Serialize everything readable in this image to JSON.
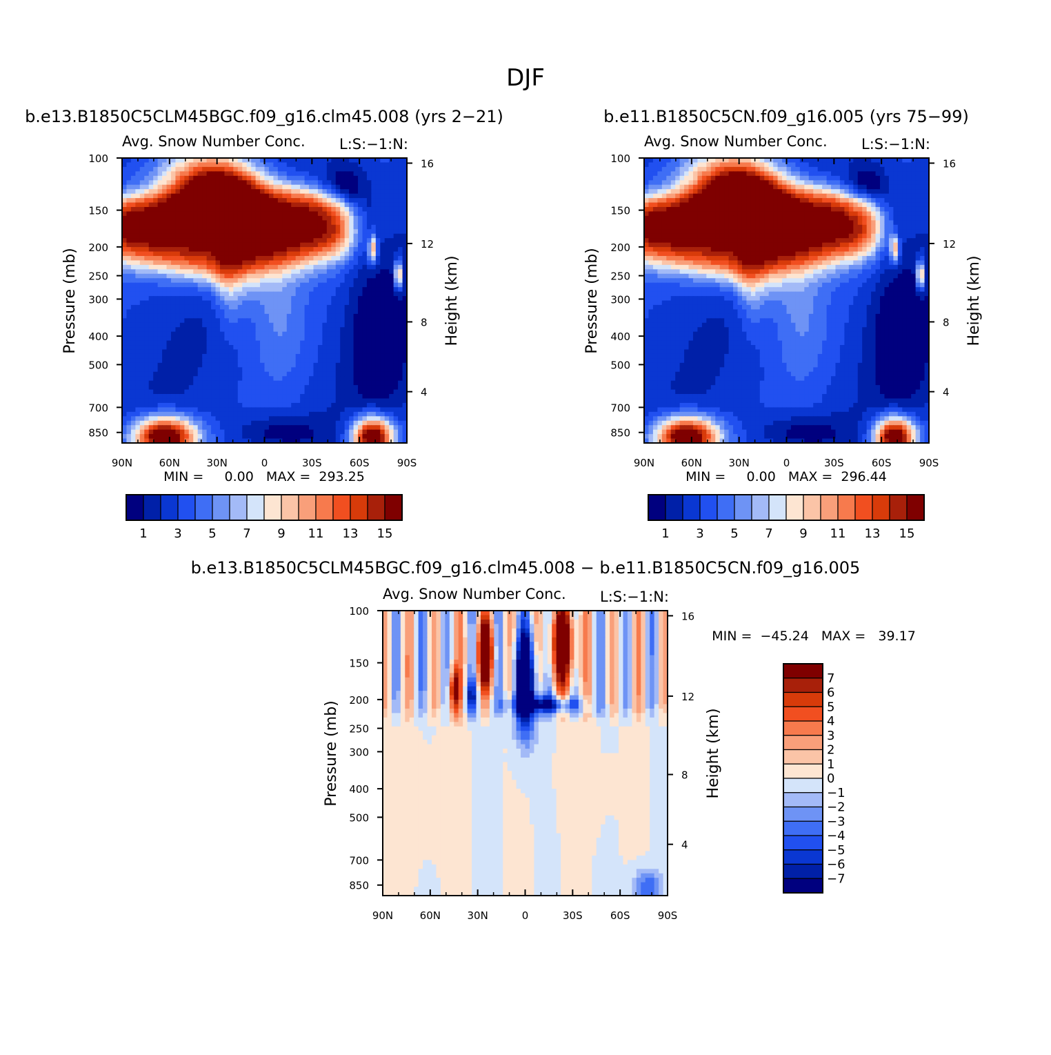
{
  "chart_data": {
    "title": "DJF",
    "panels": [
      {
        "id": "case1",
        "type": "heatmap",
        "case_title": "b.e13.B1850C5CLM45BGC.f09_g16.clm45.008 (yrs 2-21)",
        "subtitle_left": "Avg. Snow Number Conc.",
        "subtitle_right": "L:S:-1:N:",
        "xlabel": "",
        "ylabel": "Pressure (mb)",
        "ylabel_right": "Height (km)",
        "x_ticks": [
          "90N",
          "60N",
          "30N",
          "0",
          "30S",
          "60S",
          "90S"
        ],
        "y_ticks": [
          "100",
          "150",
          "200",
          "250",
          "300",
          "400",
          "500",
          "700",
          "850"
        ],
        "y_right_ticks": [
          "16",
          "12",
          "8",
          "4"
        ],
        "stats": "MIN =     0.00   MAX =  293.25",
        "colorbar_labels": [
          "1",
          "3",
          "5",
          "7",
          "9",
          "11",
          "13",
          "15"
        ],
        "levels": [
          1,
          2,
          3,
          4,
          5,
          6,
          7,
          8,
          9,
          10,
          11,
          12,
          13,
          14,
          15
        ],
        "min": 0.0,
        "max": 293.25
      },
      {
        "id": "case2",
        "type": "heatmap",
        "case_title": "b.e11.B1850C5CN.f09_g16.005 (yrs 75-99)",
        "subtitle_left": "Avg. Snow Number Conc.",
        "subtitle_right": "L:S:-1:N:",
        "xlabel": "",
        "ylabel": "Pressure (mb)",
        "ylabel_right": "Height (km)",
        "x_ticks": [
          "90N",
          "60N",
          "30N",
          "0",
          "30S",
          "60S",
          "90S"
        ],
        "y_ticks": [
          "100",
          "150",
          "200",
          "250",
          "300",
          "400",
          "500",
          "700",
          "850"
        ],
        "y_right_ticks": [
          "16",
          "12",
          "8",
          "4"
        ],
        "stats": "MIN =     0.00   MAX =  296.44",
        "colorbar_labels": [
          "1",
          "3",
          "5",
          "7",
          "9",
          "11",
          "13",
          "15"
        ],
        "levels": [
          1,
          2,
          3,
          4,
          5,
          6,
          7,
          8,
          9,
          10,
          11,
          12,
          13,
          14,
          15
        ],
        "min": 0.0,
        "max": 296.44
      },
      {
        "id": "diff",
        "type": "heatmap",
        "case_title": "b.e13.B1850C5CLM45BGC.f09_g16.clm45.008 - b.e11.B1850C5CN.f09_g16.005",
        "subtitle_left": "Avg. Snow Number Conc.",
        "subtitle_right": "L:S:-1:N:",
        "xlabel": "",
        "ylabel": "Pressure (mb)",
        "ylabel_right": "Height (km)",
        "x_ticks": [
          "90N",
          "60N",
          "30N",
          "0",
          "30S",
          "60S",
          "90S"
        ],
        "y_ticks": [
          "100",
          "150",
          "200",
          "250",
          "300",
          "400",
          "500",
          "700",
          "850"
        ],
        "y_right_ticks": [
          "16",
          "12",
          "8",
          "4"
        ],
        "stats": "MIN =  -45.24   MAX =   39.17",
        "colorbar_labels": [
          "7",
          "6",
          "5",
          "4",
          "3",
          "2",
          "1",
          "0",
          "-1",
          "-2",
          "-3",
          "-4",
          "-5",
          "-6",
          "-7"
        ],
        "levels": [
          -7,
          -6,
          -5,
          -4,
          -3,
          -2,
          -1,
          0,
          1,
          2,
          3,
          4,
          5,
          6,
          7
        ],
        "min": -45.24,
        "max": 39.17
      }
    ]
  },
  "palette": [
    "#00007f",
    "#0020a8",
    "#0a37d2",
    "#2150f0",
    "#3f6ef5",
    "#6e93f5",
    "#a3baf7",
    "#d4e4fa",
    "#fde5d2",
    "#fbc4a7",
    "#f99f7a",
    "#f77a4d",
    "#f14f20",
    "#d83b0a",
    "#a8200a",
    "#7f0000"
  ]
}
